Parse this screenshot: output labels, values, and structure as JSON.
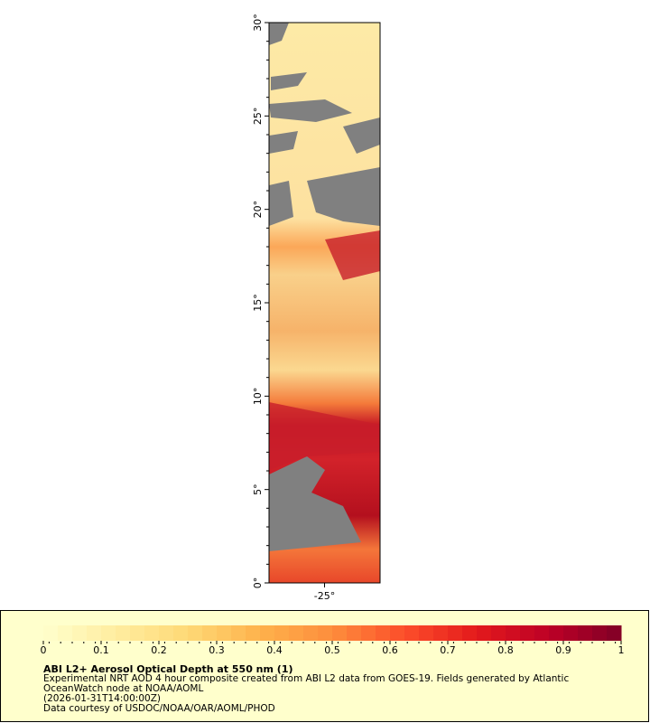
{
  "map": {
    "lat_labels": [
      "0°",
      "5°",
      "10°",
      "15°",
      "20°",
      "25°",
      "30°"
    ],
    "lon_labels": [
      "-25°"
    ]
  },
  "legend": {
    "colorbar_ticks": [
      0,
      0.1,
      0.2,
      0.3,
      0.4,
      0.5,
      0.6,
      0.7,
      0.8,
      0.9,
      1
    ],
    "title": "ABI L2+ Aerosol Optical Depth at 550 nm (1)",
    "lines": [
      "Experimental NRT AOD 4 hour composite created from ABI L2 data from GOES-19. Fields generated by Atlantic",
      "OceanWatch node at NOAA/AOML",
      "(2026-01-31T14:00:00Z)",
      "Data courtesy of USDOC/NOAA/OAR/AOML/PHOD"
    ]
  }
}
